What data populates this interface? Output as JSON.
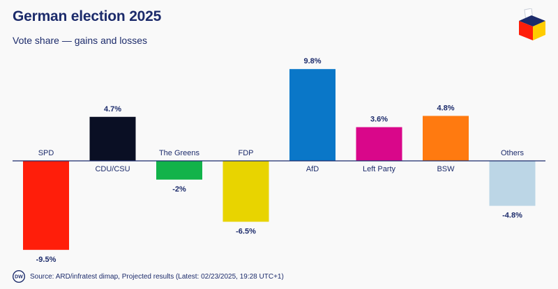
{
  "header": {
    "title": "German election 2025",
    "subtitle": "Vote share — gains and losses"
  },
  "footer": {
    "logo_text": "DW",
    "source": "Source: ARD/infratest dimap, Projected results (Latest: 02/23/2025, 19:28 UTC+1)"
  },
  "chart_data": {
    "type": "bar",
    "title": "German election 2025",
    "subtitle": "Vote share — gains and losses",
    "unit": "%",
    "categories": [
      "SPD",
      "CDU/CSU",
      "The Greens",
      "FDP",
      "AfD",
      "Left Party",
      "BSW",
      "Others"
    ],
    "values": [
      -9.5,
      4.7,
      -2,
      -6.5,
      9.8,
      3.6,
      4.8,
      -4.8
    ],
    "labels": [
      "-9.5%",
      "4.7%",
      "-2%",
      "-6.5%",
      "9.8%",
      "3.6%",
      "4.8%",
      "-4.8%"
    ],
    "colors": [
      "#ff1e0a",
      "#0a0f24",
      "#12b34a",
      "#e8d400",
      "#0a77c8",
      "#d9078a",
      "#ff7a10",
      "#bcd6e6"
    ],
    "ylim": [
      -10,
      10
    ],
    "grid": false,
    "legend": "none"
  }
}
